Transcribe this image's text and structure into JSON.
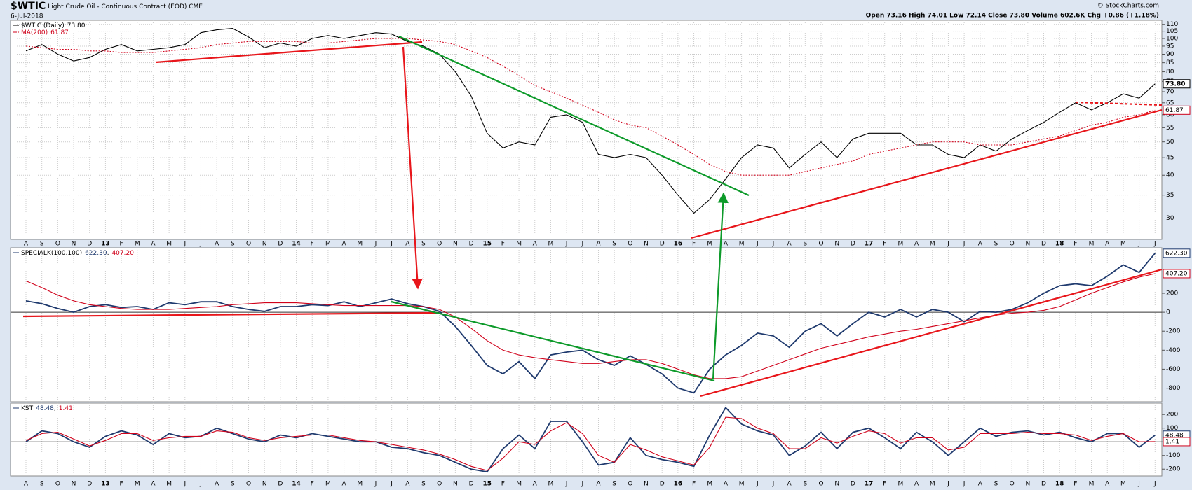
{
  "header": {
    "symbol": "$WTIC",
    "name": "Light Crude Oil - Continuous Contract (EOD) CME",
    "date": "6-Jul-2018",
    "quote": "Open 73.16 High 74.01 Low 72.14 Close 73.80 Volume 602.6K Chg +0.86 (+1.18%)",
    "copyright": "© StockCharts.com"
  },
  "chart_data": [
    {
      "type": "line",
      "log_scale": true,
      "grid": true,
      "categories": [
        "A",
        "S",
        "O",
        "N",
        "D",
        "13",
        "F",
        "M",
        "A",
        "M",
        "J",
        "J",
        "A",
        "S",
        "O",
        "N",
        "D",
        "14",
        "F",
        "M",
        "A",
        "M",
        "J",
        "J",
        "A",
        "S",
        "O",
        "N",
        "D",
        "15",
        "F",
        "M",
        "A",
        "M",
        "J",
        "J",
        "A",
        "S",
        "O",
        "N",
        "D",
        "16",
        "F",
        "M",
        "A",
        "M",
        "J",
        "J",
        "A",
        "S",
        "O",
        "N",
        "D",
        "17",
        "F",
        "M",
        "A",
        "M",
        "J",
        "J",
        "A",
        "S",
        "O",
        "N",
        "D",
        "18",
        "F",
        "M",
        "A",
        "M",
        "J",
        "J"
      ],
      "ylim": [
        26,
        113
      ],
      "yticks": [
        30,
        35,
        40,
        45,
        50,
        55,
        60,
        65,
        70,
        75,
        80,
        85,
        90,
        95,
        100,
        105,
        110
      ],
      "series": [
        {
          "name": "$WTIC (Daily)",
          "last": "73.80",
          "color": "#000000",
          "dashed": false,
          "values": [
            92,
            96,
            90,
            86,
            88,
            93,
            96,
            92,
            93,
            94,
            96,
            104,
            106,
            107,
            101,
            94,
            97,
            95,
            100,
            102,
            100,
            102,
            104,
            103,
            98,
            95,
            90,
            80,
            68,
            53,
            48,
            50,
            49,
            59,
            60,
            57,
            46,
            45,
            46,
            45,
            40,
            35,
            31,
            34,
            39,
            45,
            49,
            48,
            42,
            46,
            50,
            45,
            51,
            53,
            53,
            53,
            49,
            49,
            46,
            45,
            49,
            47,
            51,
            54,
            57,
            61,
            65,
            62,
            65,
            69,
            67,
            73.8
          ]
        },
        {
          "name": "MA(200)",
          "last": "61.87",
          "color": "#d0021b",
          "dashed": true,
          "values": [
            95,
            94,
            93,
            93,
            92,
            92,
            91,
            91,
            91,
            92,
            93,
            94,
            96,
            97,
            98,
            98,
            98,
            98,
            97,
            97,
            98,
            99,
            100,
            100,
            100,
            99,
            98,
            96,
            92,
            88,
            83,
            78,
            73,
            70,
            67,
            64,
            61,
            58,
            56,
            55,
            52,
            49,
            46,
            43,
            41,
            40,
            40,
            40,
            40,
            41,
            42,
            43,
            44,
            46,
            47,
            48,
            49,
            50,
            50,
            50,
            49,
            49,
            49,
            50,
            51,
            52,
            54,
            56,
            57,
            59,
            60,
            61.87
          ]
        }
      ]
    },
    {
      "type": "line",
      "log_scale": false,
      "zero_line": true,
      "ylim": [
        -944,
        680
      ],
      "yticks": [
        -800,
        -600,
        -400,
        -200,
        0,
        200
      ],
      "series": [
        {
          "name": "SPECIALK(100,100)",
          "last": "622.30",
          "color": "#1f3a6e",
          "dashed": false,
          "values": [
            120,
            90,
            40,
            0,
            60,
            80,
            50,
            60,
            30,
            100,
            80,
            110,
            110,
            60,
            30,
            10,
            60,
            60,
            80,
            70,
            110,
            60,
            100,
            140,
            90,
            60,
            10,
            -150,
            -350,
            -560,
            -650,
            -520,
            -700,
            -450,
            -420,
            -400,
            -500,
            -560,
            -460,
            -550,
            -650,
            -800,
            -850,
            -600,
            -450,
            -350,
            -220,
            -250,
            -370,
            -200,
            -120,
            -250,
            -120,
            0,
            -50,
            30,
            -50,
            30,
            0,
            -100,
            10,
            0,
            30,
            100,
            200,
            280,
            300,
            280,
            380,
            500,
            420,
            622.3
          ]
        },
        {
          "last": "407.20",
          "color": "#d0021b",
          "dashed": false,
          "values": [
            330,
            260,
            180,
            120,
            80,
            60,
            40,
            30,
            30,
            30,
            40,
            50,
            60,
            80,
            90,
            100,
            100,
            100,
            90,
            80,
            70,
            70,
            70,
            70,
            70,
            60,
            30,
            -50,
            -170,
            -300,
            -400,
            -450,
            -480,
            -500,
            -520,
            -540,
            -540,
            -520,
            -500,
            -500,
            -540,
            -600,
            -660,
            -700,
            -700,
            -680,
            -620,
            -560,
            -500,
            -440,
            -380,
            -340,
            -300,
            -260,
            -230,
            -200,
            -180,
            -150,
            -120,
            -90,
            -60,
            -30,
            -10,
            0,
            20,
            60,
            130,
            200,
            260,
            320,
            370,
            407.2
          ]
        }
      ]
    },
    {
      "type": "line",
      "log_scale": false,
      "zero_line": true,
      "categories": [
        "A",
        "S",
        "O",
        "N",
        "D",
        "13",
        "F",
        "M",
        "A",
        "M",
        "J",
        "J",
        "A",
        "S",
        "O",
        "N",
        "D",
        "14",
        "F",
        "M",
        "A",
        "M",
        "J",
        "J",
        "A",
        "S",
        "O",
        "N",
        "D",
        "15",
        "F",
        "M",
        "A",
        "M",
        "J",
        "J",
        "A",
        "S",
        "O",
        "N",
        "D",
        "16",
        "F",
        "M",
        "A",
        "M",
        "J",
        "J",
        "A",
        "S",
        "O",
        "N",
        "D",
        "17",
        "F",
        "M",
        "A",
        "M",
        "J",
        "J",
        "A",
        "S",
        "O",
        "N",
        "D",
        "18",
        "F",
        "M",
        "A",
        "M",
        "J",
        "J"
      ],
      "ylim": [
        -250,
        283
      ],
      "yticks": [
        -200,
        -100,
        0,
        100,
        200
      ],
      "series": [
        {
          "name": "KST",
          "last": "48.48",
          "color": "#1f3a6e",
          "dashed": false,
          "values": [
            0,
            80,
            60,
            0,
            -40,
            40,
            80,
            50,
            -20,
            60,
            30,
            40,
            100,
            60,
            20,
            0,
            50,
            30,
            60,
            40,
            20,
            0,
            0,
            -40,
            -50,
            -80,
            -100,
            -150,
            -200,
            -220,
            -50,
            50,
            -50,
            150,
            150,
            0,
            -170,
            -150,
            30,
            -100,
            -130,
            -150,
            -180,
            50,
            250,
            130,
            80,
            50,
            -100,
            -30,
            70,
            -50,
            70,
            100,
            30,
            -50,
            70,
            0,
            -100,
            0,
            100,
            40,
            70,
            80,
            50,
            70,
            30,
            0,
            60,
            60,
            -40,
            48.48
          ]
        },
        {
          "last": "1.41",
          "color": "#d0021b",
          "dashed": false,
          "values": [
            10,
            60,
            70,
            20,
            -30,
            10,
            60,
            60,
            10,
            30,
            40,
            40,
            80,
            70,
            30,
            10,
            30,
            40,
            50,
            50,
            30,
            10,
            0,
            -20,
            -40,
            -60,
            -90,
            -130,
            -180,
            -210,
            -120,
            0,
            -20,
            80,
            140,
            60,
            -100,
            -150,
            -20,
            -60,
            -110,
            -140,
            -170,
            -40,
            180,
            170,
            100,
            60,
            -50,
            -50,
            30,
            -10,
            40,
            80,
            60,
            -10,
            30,
            30,
            -60,
            -40,
            60,
            60,
            60,
            70,
            60,
            60,
            50,
            10,
            40,
            60,
            0,
            1.41
          ]
        }
      ]
    }
  ]
}
